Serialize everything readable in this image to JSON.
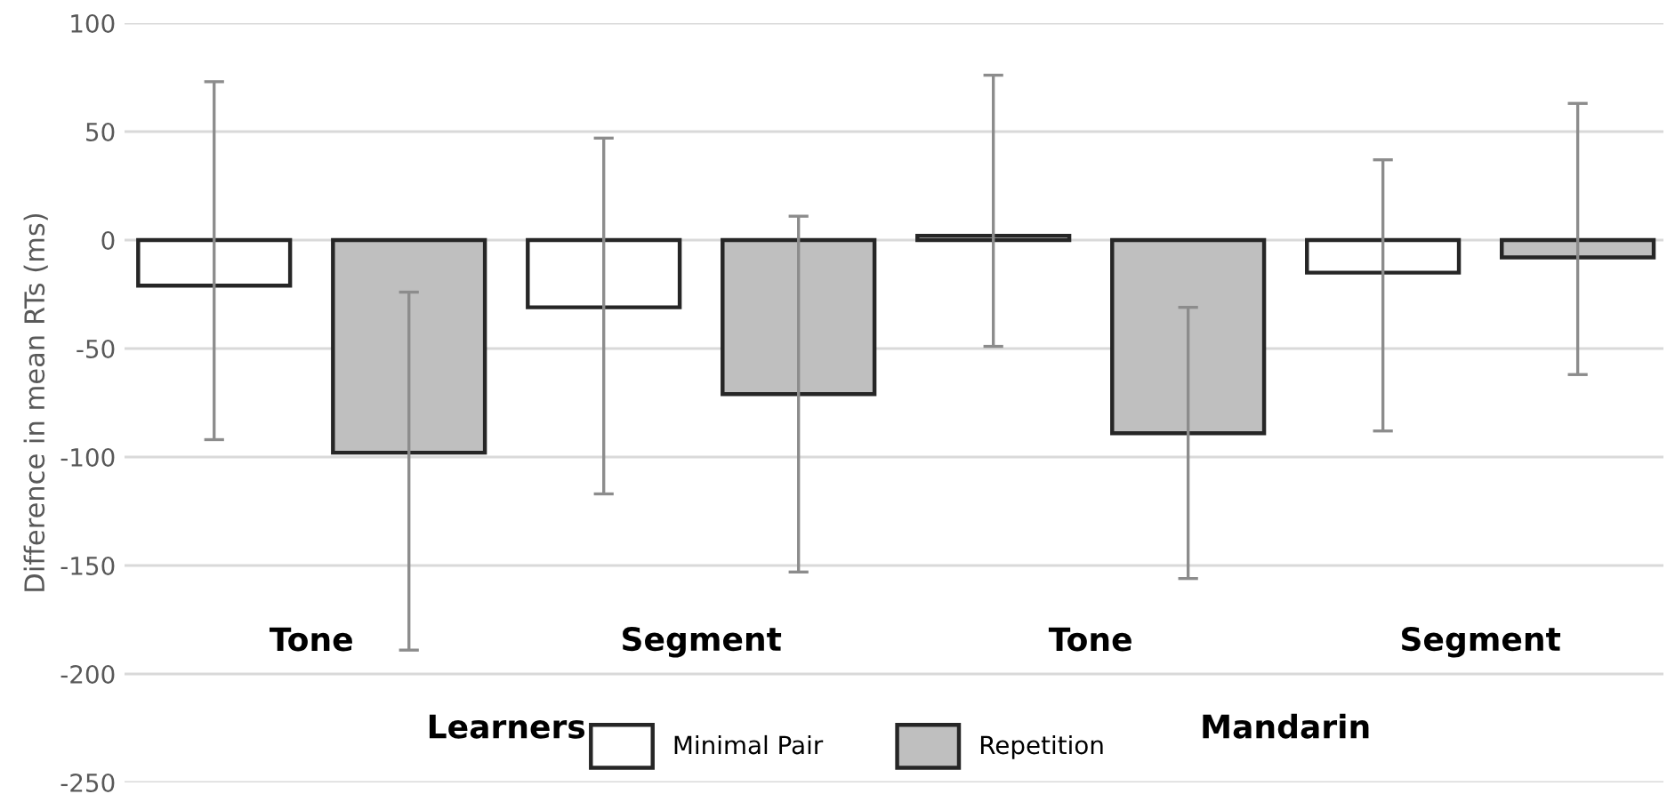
{
  "chart_data": {
    "type": "bar",
    "ylabel": "Difference in mean RTs (ms)",
    "categories": [
      "Tone",
      "Segment",
      "Tone",
      "Segment"
    ],
    "series": [
      {
        "name": "Minimal Pair",
        "color": "#ffffff",
        "values": [
          -21,
          -31,
          2,
          -15
        ],
        "errors": [
          [
            -92,
            73
          ],
          [
            -117,
            47
          ],
          [
            -49,
            76
          ],
          [
            -88,
            37
          ]
        ]
      },
      {
        "name": "Repetition",
        "color": "#bfbfbf",
        "values": [
          -98,
          -71,
          -89,
          -8
        ],
        "errors": [
          [
            -189,
            -24
          ],
          [
            -153,
            11
          ],
          [
            -156,
            -31
          ],
          [
            -62,
            63
          ]
        ]
      }
    ],
    "ylim": [
      -250,
      100
    ],
    "yticks": [
      -250,
      -200,
      -150,
      -100,
      -50,
      0,
      50,
      100
    ],
    "grid": "y",
    "legend": "bottom",
    "annotations": [
      "Learners",
      "Mandarin"
    ]
  }
}
